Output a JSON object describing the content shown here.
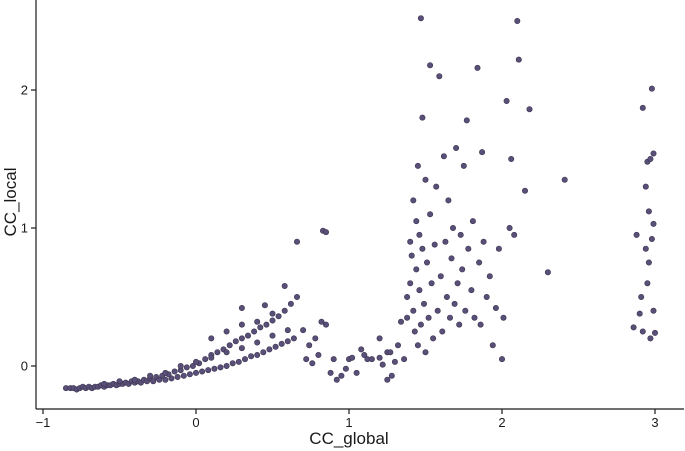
{
  "chart_data": {
    "type": "scatter",
    "title": "",
    "xlabel": "CC_global",
    "ylabel": "CC_local",
    "xlim": [
      -1.0,
      3.18
    ],
    "ylim": [
      -0.3,
      2.6
    ],
    "x_ticks": [
      -1,
      0,
      1,
      2,
      3
    ],
    "x_tick_labels": [
      "−1",
      "0",
      "1",
      "2",
      "3"
    ],
    "y_ticks": [
      0,
      1,
      2
    ],
    "y_tick_labels": [
      "0",
      "1",
      "2"
    ],
    "grid": false,
    "legend": "none",
    "point_color": "#5a4f78",
    "point_edge_color": "#3b3550",
    "series": [
      {
        "points": [
          [
            -0.85,
            -0.16
          ],
          [
            -0.82,
            -0.16
          ],
          [
            -0.8,
            -0.16
          ],
          [
            -0.78,
            -0.17
          ],
          [
            -0.76,
            -0.16
          ],
          [
            -0.74,
            -0.15
          ],
          [
            -0.72,
            -0.16
          ],
          [
            -0.7,
            -0.15
          ],
          [
            -0.68,
            -0.16
          ],
          [
            -0.66,
            -0.15
          ],
          [
            -0.64,
            -0.15
          ],
          [
            -0.62,
            -0.14
          ],
          [
            -0.6,
            -0.15
          ],
          [
            -0.58,
            -0.14
          ],
          [
            -0.56,
            -0.14
          ],
          [
            -0.54,
            -0.13
          ],
          [
            -0.52,
            -0.14
          ],
          [
            -0.5,
            -0.13
          ],
          [
            -0.48,
            -0.13
          ],
          [
            -0.46,
            -0.12
          ],
          [
            -0.44,
            -0.13
          ],
          [
            -0.42,
            -0.11
          ],
          [
            -0.4,
            -0.12
          ],
          [
            -0.38,
            -0.11
          ],
          [
            -0.36,
            -0.12
          ],
          [
            -0.34,
            -0.1
          ],
          [
            -0.32,
            -0.11
          ],
          [
            -0.3,
            -0.09
          ],
          [
            -0.28,
            -0.11
          ],
          [
            -0.26,
            -0.08
          ],
          [
            -0.24,
            -0.1
          ],
          [
            -0.22,
            -0.07
          ],
          [
            -0.2,
            -0.1
          ],
          [
            -0.18,
            -0.06
          ],
          [
            -0.16,
            -0.09
          ],
          [
            -0.14,
            -0.04
          ],
          [
            -0.12,
            -0.08
          ],
          [
            -0.1,
            -0.03
          ],
          [
            -0.08,
            -0.07
          ],
          [
            -0.06,
            -0.01
          ],
          [
            -0.04,
            -0.06
          ],
          [
            -0.02,
            0.0
          ],
          [
            0.0,
            -0.05
          ],
          [
            0.02,
            0.02
          ],
          [
            0.04,
            -0.04
          ],
          [
            0.06,
            0.05
          ],
          [
            0.08,
            -0.03
          ],
          [
            0.1,
            0.08
          ],
          [
            0.12,
            -0.02
          ],
          [
            0.14,
            0.1
          ],
          [
            0.16,
            -0.01
          ],
          [
            0.18,
            0.12
          ],
          [
            0.2,
            0.0
          ],
          [
            0.22,
            0.15
          ],
          [
            0.24,
            0.02
          ],
          [
            0.26,
            0.18
          ],
          [
            0.28,
            0.03
          ],
          [
            0.3,
            0.2
          ],
          [
            0.32,
            0.05
          ],
          [
            0.34,
            0.22
          ],
          [
            0.36,
            0.07
          ],
          [
            0.38,
            0.25
          ],
          [
            0.4,
            0.08
          ],
          [
            0.42,
            0.28
          ],
          [
            0.44,
            0.1
          ],
          [
            0.46,
            0.3
          ],
          [
            0.48,
            0.12
          ],
          [
            0.5,
            0.33
          ],
          [
            0.52,
            0.14
          ],
          [
            0.54,
            0.36
          ],
          [
            0.56,
            0.16
          ],
          [
            0.58,
            0.4
          ],
          [
            0.6,
            0.18
          ],
          [
            0.62,
            0.45
          ],
          [
            0.64,
            0.2
          ],
          [
            0.66,
            0.5
          ],
          [
            -0.6,
            -0.13
          ],
          [
            -0.5,
            -0.11
          ],
          [
            -0.4,
            -0.1
          ],
          [
            -0.3,
            -0.07
          ],
          [
            -0.2,
            -0.05
          ],
          [
            -0.1,
            0.0
          ],
          [
            0.0,
            0.03
          ],
          [
            0.1,
            0.06
          ],
          [
            0.2,
            0.1
          ],
          [
            0.3,
            0.13
          ],
          [
            0.4,
            0.17
          ],
          [
            0.5,
            0.22
          ],
          [
            0.6,
            0.26
          ],
          [
            0.1,
            0.2
          ],
          [
            0.2,
            0.25
          ],
          [
            0.3,
            0.3
          ],
          [
            0.4,
            0.32
          ],
          [
            0.5,
            0.38
          ],
          [
            0.3,
            0.42
          ],
          [
            0.45,
            0.44
          ],
          [
            0.58,
            0.58
          ],
          [
            0.66,
            0.9
          ],
          [
            0.83,
            0.98
          ],
          [
            0.85,
            0.97
          ],
          [
            0.7,
            0.26
          ],
          [
            0.72,
            0.05
          ],
          [
            0.74,
            0.15
          ],
          [
            0.76,
            0.02
          ],
          [
            0.78,
            0.2
          ],
          [
            0.8,
            0.08
          ],
          [
            0.82,
            0.32
          ],
          [
            0.85,
            0.3
          ],
          [
            0.88,
            -0.05
          ],
          [
            0.9,
            0.05
          ],
          [
            0.92,
            -0.1
          ],
          [
            0.95,
            -0.07
          ],
          [
            0.98,
            -0.02
          ],
          [
            1.0,
            0.05
          ],
          [
            1.02,
            0.06
          ],
          [
            1.05,
            -0.05
          ],
          [
            1.08,
            0.12
          ],
          [
            1.1,
            0.08
          ],
          [
            1.12,
            0.05
          ],
          [
            1.15,
            0.05
          ],
          [
            1.2,
            0.06
          ],
          [
            1.22,
            0.01
          ],
          [
            1.25,
            0.1
          ],
          [
            1.27,
            0.1
          ],
          [
            1.2,
            0.2
          ],
          [
            1.25,
            -0.1
          ],
          [
            1.28,
            -0.07
          ],
          [
            1.3,
            0.03
          ],
          [
            1.32,
            0.15
          ],
          [
            1.34,
            0.32
          ],
          [
            1.36,
            0.05
          ],
          [
            1.38,
            0.35
          ],
          [
            1.38,
            0.5
          ],
          [
            1.4,
            0.9
          ],
          [
            1.4,
            0.6
          ],
          [
            1.41,
            0.8
          ],
          [
            1.42,
            0.4
          ],
          [
            1.42,
            1.2
          ],
          [
            1.43,
            0.25
          ],
          [
            1.44,
            1.05
          ],
          [
            1.44,
            0.7
          ],
          [
            1.45,
            1.45
          ],
          [
            1.45,
            0.15
          ],
          [
            1.46,
            0.95
          ],
          [
            1.46,
            0.55
          ],
          [
            1.47,
            2.52
          ],
          [
            1.47,
            0.3
          ],
          [
            1.48,
            1.8
          ],
          [
            1.48,
            0.85
          ],
          [
            1.49,
            0.45
          ],
          [
            1.5,
            1.35
          ],
          [
            1.5,
            0.1
          ],
          [
            1.51,
            0.75
          ],
          [
            1.52,
            0.35
          ],
          [
            1.53,
            2.18
          ],
          [
            1.53,
            1.1
          ],
          [
            1.54,
            0.6
          ],
          [
            1.55,
            0.2
          ],
          [
            1.56,
            0.88
          ],
          [
            1.57,
            1.3
          ],
          [
            1.58,
            0.4
          ],
          [
            1.59,
            2.1
          ],
          [
            1.6,
            0.65
          ],
          [
            1.61,
            0.25
          ],
          [
            1.62,
            1.52
          ],
          [
            1.63,
            0.9
          ],
          [
            1.64,
            0.5
          ],
          [
            1.65,
            1.2
          ],
          [
            1.66,
            0.35
          ],
          [
            1.67,
            0.78
          ],
          [
            1.68,
            1.0
          ],
          [
            1.69,
            0.45
          ],
          [
            1.7,
            1.58
          ],
          [
            1.71,
            0.6
          ],
          [
            1.72,
            0.3
          ],
          [
            1.73,
            0.95
          ],
          [
            1.74,
            0.7
          ],
          [
            1.75,
            1.45
          ],
          [
            1.76,
            0.4
          ],
          [
            1.77,
            1.78
          ],
          [
            1.78,
            0.85
          ],
          [
            1.8,
            0.55
          ],
          [
            1.81,
            1.05
          ],
          [
            1.82,
            0.35
          ],
          [
            1.84,
            2.16
          ],
          [
            1.85,
            0.75
          ],
          [
            1.86,
            0.3
          ],
          [
            1.87,
            1.55
          ],
          [
            1.88,
            0.9
          ],
          [
            1.9,
            0.5
          ],
          [
            1.92,
            0.65
          ],
          [
            1.94,
            0.15
          ],
          [
            1.96,
            0.42
          ],
          [
            1.98,
            0.85
          ],
          [
            2.0,
            0.05
          ],
          [
            2.01,
            0.35
          ],
          [
            2.03,
            1.92
          ],
          [
            2.05,
            1.0
          ],
          [
            2.06,
            1.5
          ],
          [
            2.08,
            0.95
          ],
          [
            2.1,
            2.5
          ],
          [
            2.11,
            2.22
          ],
          [
            2.15,
            1.27
          ],
          [
            2.18,
            1.86
          ],
          [
            2.3,
            0.68
          ],
          [
            2.41,
            1.35
          ],
          [
            2.86,
            0.28
          ],
          [
            2.88,
            0.95
          ],
          [
            2.9,
            0.38
          ],
          [
            2.91,
            0.5
          ],
          [
            2.92,
            1.87
          ],
          [
            2.92,
            0.25
          ],
          [
            2.94,
            1.3
          ],
          [
            2.94,
            0.85
          ],
          [
            2.95,
            1.48
          ],
          [
            2.95,
            0.6
          ],
          [
            2.96,
            1.12
          ],
          [
            2.96,
            0.75
          ],
          [
            2.97,
            0.2
          ],
          [
            2.97,
            1.5
          ],
          [
            2.98,
            2.01
          ],
          [
            2.98,
            0.92
          ],
          [
            2.99,
            1.54
          ],
          [
            2.99,
            0.4
          ],
          [
            2.99,
            1.03
          ],
          [
            3.0,
            0.24
          ]
        ]
      }
    ]
  }
}
